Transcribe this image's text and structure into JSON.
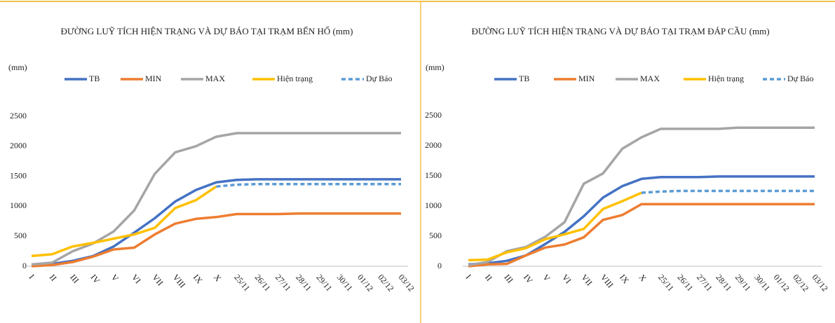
{
  "chart_data": [
    {
      "type": "line",
      "title": "ĐƯỜNG LUỸ TÍCH HIỆN TRẠNG VÀ DỰ BÁO TẠI TRẠM BẾN HỔ (mm)",
      "y_label": "(mm)",
      "categories": [
        "I",
        "II",
        "III",
        "IV",
        "V",
        "VI",
        "VII",
        "VIII",
        "IX",
        "X",
        "25/11",
        "26/11",
        "27/11",
        "28/11",
        "29/11",
        "30/11",
        "01/12",
        "02/12",
        "03/12"
      ],
      "ylim": [
        0,
        2500
      ],
      "yticks": [
        0,
        500,
        1000,
        1500,
        2000,
        2500
      ],
      "series": [
        {
          "name": "TB",
          "color": "#4472c4",
          "dashed": false,
          "values": [
            20,
            40,
            90,
            170,
            330,
            560,
            800,
            1080,
            1270,
            1400,
            1440,
            1450,
            1450,
            1450,
            1450,
            1450,
            1450,
            1450,
            1450
          ]
        },
        {
          "name": "MIN",
          "color": "#ed7d31",
          "dashed": false,
          "values": [
            0,
            20,
            70,
            160,
            280,
            310,
            530,
            710,
            790,
            820,
            870,
            870,
            870,
            880,
            880,
            880,
            880,
            880,
            880
          ]
        },
        {
          "name": "MAX",
          "color": "#a5a5a5",
          "dashed": false,
          "values": [
            30,
            60,
            250,
            380,
            580,
            930,
            1540,
            1900,
            2000,
            2160,
            2220,
            2220,
            2220,
            2220,
            2220,
            2220,
            2220,
            2220,
            2220
          ]
        },
        {
          "name": "Hiện trạng",
          "color": "#ffc000",
          "dashed": false,
          "values": [
            170,
            200,
            330,
            390,
            460,
            530,
            640,
            970,
            1100,
            1330,
            null,
            null,
            null,
            null,
            null,
            null,
            null,
            null,
            null
          ]
        },
        {
          "name": "Dự Báo",
          "color": "#5b9bd5",
          "dashed": true,
          "values": [
            null,
            null,
            null,
            null,
            null,
            null,
            null,
            null,
            null,
            1330,
            1360,
            1370,
            1370,
            1370,
            1370,
            1370,
            1370,
            1370,
            1370
          ]
        }
      ]
    },
    {
      "type": "line",
      "title": "ĐƯỜNG LUỸ TÍCH HIỆN TRẠNG VÀ DỰ BÁO TẠI TRẠM ĐÁP CẦU (mm)",
      "y_label": "(mm)",
      "categories": [
        "I",
        "II",
        "III",
        "IV",
        "V",
        "VI",
        "VII",
        "VIII",
        "IX",
        "X",
        "25/11",
        "26/11",
        "27/11",
        "28/11",
        "29/11",
        "30/11",
        "01/12",
        "02/12",
        "03/12"
      ],
      "ylim": [
        0,
        2500
      ],
      "yticks": [
        0,
        500,
        1000,
        1500,
        2000,
        2500
      ],
      "series": [
        {
          "name": "TB",
          "color": "#4472c4",
          "dashed": false,
          "values": [
            30,
            50,
            90,
            180,
            370,
            570,
            830,
            1140,
            1330,
            1450,
            1480,
            1480,
            1480,
            1490,
            1490,
            1490,
            1490,
            1490,
            1490
          ]
        },
        {
          "name": "MIN",
          "color": "#ed7d31",
          "dashed": false,
          "values": [
            0,
            30,
            40,
            180,
            310,
            360,
            480,
            770,
            850,
            1030,
            1030,
            1030,
            1030,
            1030,
            1030,
            1030,
            1030,
            1030,
            1030
          ]
        },
        {
          "name": "MAX",
          "color": "#a5a5a5",
          "dashed": false,
          "values": [
            20,
            70,
            250,
            320,
            490,
            730,
            1370,
            1540,
            1950,
            2140,
            2280,
            2280,
            2280,
            2280,
            2300,
            2300,
            2300,
            2300,
            2300
          ]
        },
        {
          "name": "Hiện trạng",
          "color": "#ffc000",
          "dashed": false,
          "values": [
            100,
            110,
            230,
            300,
            450,
            530,
            620,
            950,
            1080,
            1220,
            null,
            null,
            null,
            null,
            null,
            null,
            null,
            null,
            null
          ]
        },
        {
          "name": "Dự Báo",
          "color": "#5b9bd5",
          "dashed": true,
          "values": [
            null,
            null,
            null,
            null,
            null,
            null,
            null,
            null,
            null,
            1220,
            1240,
            1250,
            1250,
            1250,
            1250,
            1250,
            1250,
            1250,
            1250
          ]
        }
      ]
    }
  ]
}
